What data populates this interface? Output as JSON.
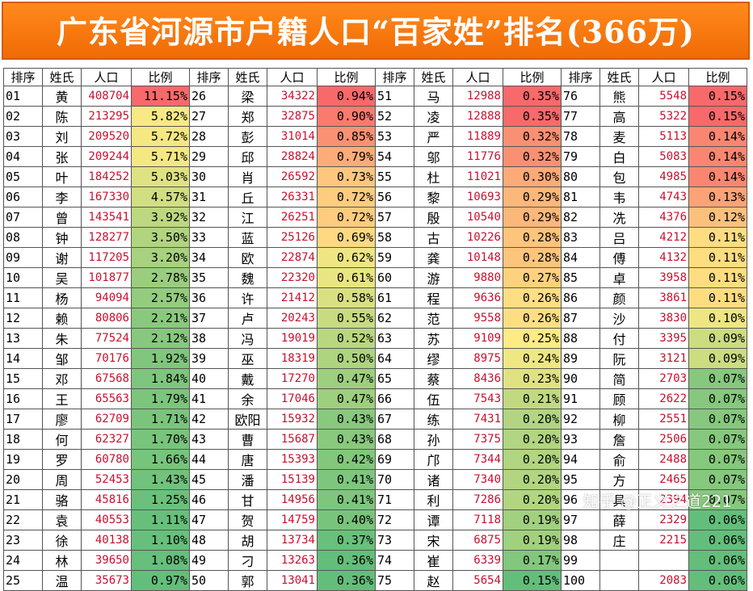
{
  "title": "广东省河源市户籍人口“百家姓”排名(366万)",
  "headers": [
    "排序",
    "姓氏",
    "人口",
    "比例"
  ],
  "watermark": "知乎 @正义之道221",
  "colors": {
    "title_bg": "#f07a0f",
    "population_text": "#c8102e",
    "ratio_high": "#f8696b",
    "ratio_mid": "#ffeb84",
    "ratio_low": "#63be7b"
  },
  "rows": [
    {
      "rank": "01",
      "surname": "黄",
      "population": "408704",
      "ratio": "11.15%"
    },
    {
      "rank": "02",
      "surname": "陈",
      "population": "213295",
      "ratio": "5.82%"
    },
    {
      "rank": "03",
      "surname": "刘",
      "population": "209520",
      "ratio": "5.72%"
    },
    {
      "rank": "04",
      "surname": "张",
      "population": "209244",
      "ratio": "5.71%"
    },
    {
      "rank": "05",
      "surname": "叶",
      "population": "184252",
      "ratio": "5.03%"
    },
    {
      "rank": "06",
      "surname": "李",
      "population": "167330",
      "ratio": "4.57%"
    },
    {
      "rank": "07",
      "surname": "曾",
      "population": "143541",
      "ratio": "3.92%"
    },
    {
      "rank": "08",
      "surname": "钟",
      "population": "128277",
      "ratio": "3.50%"
    },
    {
      "rank": "09",
      "surname": "谢",
      "population": "117205",
      "ratio": "3.20%"
    },
    {
      "rank": "10",
      "surname": "吴",
      "population": "101877",
      "ratio": "2.78%"
    },
    {
      "rank": "11",
      "surname": "杨",
      "population": "94094",
      "ratio": "2.57%"
    },
    {
      "rank": "12",
      "surname": "赖",
      "population": "80806",
      "ratio": "2.21%"
    },
    {
      "rank": "13",
      "surname": "朱",
      "population": "77524",
      "ratio": "2.12%"
    },
    {
      "rank": "14",
      "surname": "邹",
      "population": "70176",
      "ratio": "1.92%"
    },
    {
      "rank": "15",
      "surname": "邓",
      "population": "67568",
      "ratio": "1.84%"
    },
    {
      "rank": "16",
      "surname": "王",
      "population": "65563",
      "ratio": "1.79%"
    },
    {
      "rank": "17",
      "surname": "廖",
      "population": "62709",
      "ratio": "1.71%"
    },
    {
      "rank": "18",
      "surname": "何",
      "population": "62327",
      "ratio": "1.70%"
    },
    {
      "rank": "19",
      "surname": "罗",
      "population": "60780",
      "ratio": "1.66%"
    },
    {
      "rank": "20",
      "surname": "周",
      "population": "52453",
      "ratio": "1.43%"
    },
    {
      "rank": "21",
      "surname": "骆",
      "population": "45816",
      "ratio": "1.25%"
    },
    {
      "rank": "22",
      "surname": "袁",
      "population": "40553",
      "ratio": "1.11%"
    },
    {
      "rank": "23",
      "surname": "徐",
      "population": "40138",
      "ratio": "1.10%"
    },
    {
      "rank": "24",
      "surname": "林",
      "population": "39650",
      "ratio": "1.08%"
    },
    {
      "rank": "25",
      "surname": "温",
      "population": "35673",
      "ratio": "0.97%"
    },
    {
      "rank": "26",
      "surname": "梁",
      "population": "34322",
      "ratio": "0.94%"
    },
    {
      "rank": "27",
      "surname": "郑",
      "population": "32875",
      "ratio": "0.90%"
    },
    {
      "rank": "28",
      "surname": "彭",
      "population": "31014",
      "ratio": "0.85%"
    },
    {
      "rank": "29",
      "surname": "邱",
      "population": "28824",
      "ratio": "0.79%"
    },
    {
      "rank": "30",
      "surname": "肖",
      "population": "26592",
      "ratio": "0.73%"
    },
    {
      "rank": "31",
      "surname": "丘",
      "population": "26331",
      "ratio": "0.72%"
    },
    {
      "rank": "32",
      "surname": "江",
      "population": "26251",
      "ratio": "0.72%"
    },
    {
      "rank": "33",
      "surname": "蓝",
      "population": "25126",
      "ratio": "0.69%"
    },
    {
      "rank": "34",
      "surname": "欧",
      "population": "22874",
      "ratio": "0.62%"
    },
    {
      "rank": "35",
      "surname": "魏",
      "population": "22320",
      "ratio": "0.61%"
    },
    {
      "rank": "36",
      "surname": "许",
      "population": "21412",
      "ratio": "0.58%"
    },
    {
      "rank": "37",
      "surname": "卢",
      "population": "20243",
      "ratio": "0.55%"
    },
    {
      "rank": "38",
      "surname": "冯",
      "population": "19019",
      "ratio": "0.52%"
    },
    {
      "rank": "39",
      "surname": "巫",
      "population": "18319",
      "ratio": "0.50%"
    },
    {
      "rank": "40",
      "surname": "戴",
      "population": "17270",
      "ratio": "0.47%"
    },
    {
      "rank": "41",
      "surname": "余",
      "population": "17046",
      "ratio": "0.47%"
    },
    {
      "rank": "42",
      "surname": "欧阳",
      "population": "15932",
      "ratio": "0.43%"
    },
    {
      "rank": "43",
      "surname": "曹",
      "population": "15687",
      "ratio": "0.43%"
    },
    {
      "rank": "44",
      "surname": "唐",
      "population": "15393",
      "ratio": "0.42%"
    },
    {
      "rank": "45",
      "surname": "潘",
      "population": "15139",
      "ratio": "0.41%"
    },
    {
      "rank": "46",
      "surname": "甘",
      "population": "14956",
      "ratio": "0.41%"
    },
    {
      "rank": "47",
      "surname": "贺",
      "population": "14759",
      "ratio": "0.40%"
    },
    {
      "rank": "48",
      "surname": "胡",
      "population": "13734",
      "ratio": "0.37%"
    },
    {
      "rank": "49",
      "surname": "刁",
      "population": "13263",
      "ratio": "0.36%"
    },
    {
      "rank": "50",
      "surname": "郭",
      "population": "13041",
      "ratio": "0.36%"
    },
    {
      "rank": "51",
      "surname": "马",
      "population": "12988",
      "ratio": "0.35%"
    },
    {
      "rank": "52",
      "surname": "凌",
      "population": "12888",
      "ratio": "0.35%"
    },
    {
      "rank": "53",
      "surname": "严",
      "population": "11889",
      "ratio": "0.32%"
    },
    {
      "rank": "54",
      "surname": "邬",
      "population": "11776",
      "ratio": "0.32%"
    },
    {
      "rank": "55",
      "surname": "杜",
      "population": "11021",
      "ratio": "0.30%"
    },
    {
      "rank": "56",
      "surname": "黎",
      "population": "10693",
      "ratio": "0.29%"
    },
    {
      "rank": "57",
      "surname": "殷",
      "population": "10540",
      "ratio": "0.29%"
    },
    {
      "rank": "58",
      "surname": "古",
      "population": "10226",
      "ratio": "0.28%"
    },
    {
      "rank": "59",
      "surname": "龚",
      "population": "10148",
      "ratio": "0.28%"
    },
    {
      "rank": "60",
      "surname": "游",
      "population": "9880",
      "ratio": "0.27%"
    },
    {
      "rank": "61",
      "surname": "程",
      "population": "9636",
      "ratio": "0.26%"
    },
    {
      "rank": "62",
      "surname": "范",
      "population": "9558",
      "ratio": "0.26%"
    },
    {
      "rank": "63",
      "surname": "苏",
      "population": "9109",
      "ratio": "0.25%"
    },
    {
      "rank": "64",
      "surname": "缪",
      "population": "8975",
      "ratio": "0.24%"
    },
    {
      "rank": "65",
      "surname": "蔡",
      "population": "8436",
      "ratio": "0.23%"
    },
    {
      "rank": "66",
      "surname": "伍",
      "population": "7543",
      "ratio": "0.21%"
    },
    {
      "rank": "67",
      "surname": "练",
      "population": "7431",
      "ratio": "0.20%"
    },
    {
      "rank": "68",
      "surname": "孙",
      "population": "7375",
      "ratio": "0.20%"
    },
    {
      "rank": "69",
      "surname": "邝",
      "population": "7344",
      "ratio": "0.20%"
    },
    {
      "rank": "70",
      "surname": "诸",
      "population": "7340",
      "ratio": "0.20%"
    },
    {
      "rank": "71",
      "surname": "利",
      "population": "7286",
      "ratio": "0.20%"
    },
    {
      "rank": "72",
      "surname": "谭",
      "population": "7118",
      "ratio": "0.19%"
    },
    {
      "rank": "73",
      "surname": "宋",
      "population": "6875",
      "ratio": "0.19%"
    },
    {
      "rank": "74",
      "surname": "崔",
      "population": "6339",
      "ratio": "0.17%"
    },
    {
      "rank": "75",
      "surname": "赵",
      "population": "5654",
      "ratio": "0.15%"
    },
    {
      "rank": "76",
      "surname": "熊",
      "population": "5548",
      "ratio": "0.15%"
    },
    {
      "rank": "77",
      "surname": "高",
      "population": "5322",
      "ratio": "0.15%"
    },
    {
      "rank": "78",
      "surname": "麦",
      "population": "5113",
      "ratio": "0.14%"
    },
    {
      "rank": "79",
      "surname": "白",
      "population": "5083",
      "ratio": "0.14%"
    },
    {
      "rank": "80",
      "surname": "包",
      "population": "4985",
      "ratio": "0.14%"
    },
    {
      "rank": "81",
      "surname": "韦",
      "population": "4743",
      "ratio": "0.13%"
    },
    {
      "rank": "82",
      "surname": "冼",
      "population": "4376",
      "ratio": "0.12%"
    },
    {
      "rank": "83",
      "surname": "吕",
      "population": "4212",
      "ratio": "0.11%"
    },
    {
      "rank": "84",
      "surname": "傅",
      "population": "4132",
      "ratio": "0.11%"
    },
    {
      "rank": "85",
      "surname": "卓",
      "population": "3958",
      "ratio": "0.11%"
    },
    {
      "rank": "86",
      "surname": "颜",
      "population": "3861",
      "ratio": "0.11%"
    },
    {
      "rank": "87",
      "surname": "沙",
      "population": "3830",
      "ratio": "0.10%"
    },
    {
      "rank": "88",
      "surname": "付",
      "population": "3395",
      "ratio": "0.09%"
    },
    {
      "rank": "89",
      "surname": "阮",
      "population": "3121",
      "ratio": "0.09%"
    },
    {
      "rank": "90",
      "surname": "简",
      "population": "2703",
      "ratio": "0.07%"
    },
    {
      "rank": "91",
      "surname": "顾",
      "population": "2622",
      "ratio": "0.07%"
    },
    {
      "rank": "92",
      "surname": "柳",
      "population": "2551",
      "ratio": "0.07%"
    },
    {
      "rank": "93",
      "surname": "詹",
      "population": "2506",
      "ratio": "0.07%"
    },
    {
      "rank": "94",
      "surname": "俞",
      "population": "2488",
      "ratio": "0.07%"
    },
    {
      "rank": "95",
      "surname": "方",
      "population": "2465",
      "ratio": "0.07%"
    },
    {
      "rank": "96",
      "surname": "具",
      "population": "2394",
      "ratio": "0.07%"
    },
    {
      "rank": "97",
      "surname": "薛",
      "population": "2329",
      "ratio": "0.06%"
    },
    {
      "rank": "98",
      "surname": "庄",
      "population": "2215",
      "ratio": "0.06%"
    },
    {
      "rank": "99",
      "surname": "",
      "population": "",
      "ratio": "0.06%"
    },
    {
      "rank": "100",
      "surname": "",
      "population": "2083",
      "ratio": "0.06%"
    }
  ]
}
